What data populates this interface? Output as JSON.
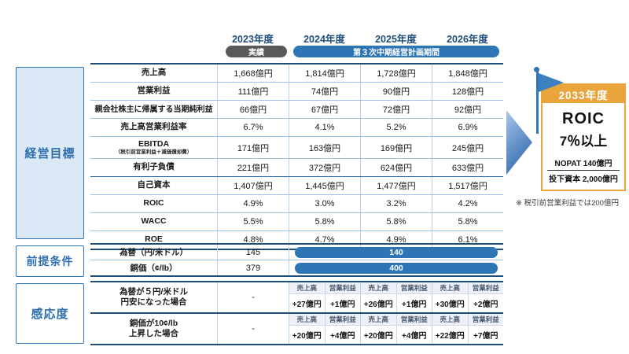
{
  "header": {
    "years": [
      "2023年度",
      "2024年度",
      "2025年度",
      "2026年度"
    ],
    "actual_badge": "実績",
    "plan_badge": "第３次中期経営計画期間"
  },
  "sections": {
    "goals_label": "経営目標",
    "assumptions_label": "前提条件",
    "sensitivity_label": "感応度"
  },
  "goals_table": {
    "rows": [
      {
        "label": "売上高",
        "values": [
          "1,668億円",
          "1,814億円",
          "1,728億円",
          "1,848億円"
        ]
      },
      {
        "label": "営業利益",
        "values": [
          "111億円",
          "74億円",
          "90億円",
          "128億円"
        ]
      },
      {
        "label": "親会社株主に帰属する当期純利益",
        "values": [
          "66億円",
          "67億円",
          "72億円",
          "92億円"
        ]
      },
      {
        "label": "売上高営業利益率",
        "values": [
          "6.7%",
          "4.1%",
          "5.2%",
          "6.9%"
        ]
      },
      {
        "label": "EBITDA",
        "sublabel": "（税引前営業利益＋減価償却費）",
        "values": [
          "171億円",
          "163億円",
          "169億円",
          "245億円"
        ]
      },
      {
        "label": "有利子負債",
        "values": [
          "221億円",
          "372億円",
          "624億円",
          "633億円"
        ]
      },
      {
        "label": "自己資本",
        "values": [
          "1,407億円",
          "1,445億円",
          "1,477億円",
          "1,517億円"
        ]
      },
      {
        "label": "ROIC",
        "values": [
          "4.9%",
          "3.0%",
          "3.2%",
          "4.2%"
        ]
      },
      {
        "label": "WACC",
        "values": [
          "5.5%",
          "5.8%",
          "5.8%",
          "5.8%"
        ]
      },
      {
        "label": "ROE",
        "values": [
          "4.8%",
          "4.7%",
          "4.9%",
          "6.1%"
        ]
      }
    ]
  },
  "assumptions_table": {
    "rows": [
      {
        "label": "為替（円/米ドル）",
        "actual": "145",
        "plan": "140"
      },
      {
        "label": "銅価（¢/lb）",
        "actual": "379",
        "plan": "400"
      }
    ]
  },
  "sensitivity_table": {
    "subheaders": [
      "売上高",
      "営業利益"
    ],
    "rows": [
      {
        "label_line1": "為替が５円/米ドル",
        "label_line2": "円安になった場合",
        "actual": "-",
        "values": [
          [
            "+27億円",
            "+1億円"
          ],
          [
            "+26億円",
            "+1億円"
          ],
          [
            "+30億円",
            "+2億円"
          ]
        ]
      },
      {
        "label_line1": "銅価が10¢/lb",
        "label_line2": "上昇した場合",
        "actual": "-",
        "values": [
          [
            "+20億円",
            "+4億円"
          ],
          [
            "+20億円",
            "+4億円"
          ],
          [
            "+22億円",
            "+7億円"
          ]
        ]
      }
    ]
  },
  "goal_card": {
    "year_badge": "2033年度",
    "metric_line1": "ROIC",
    "metric_line2": "7％以上",
    "numerator": "NOPAT 140億円",
    "denominator": "投下資本 2,000億円",
    "note": "※ 税引前営業利益では200億円"
  },
  "colors": {
    "navy": "#1F4E79",
    "blue": "#2E75B6",
    "light_blue_fill": "#DBE9F6",
    "row_divider": "#9DC3E6",
    "dark_badge": "#595959",
    "orange": "#E9A43C",
    "subheader_bg": "#EDF1F7"
  }
}
